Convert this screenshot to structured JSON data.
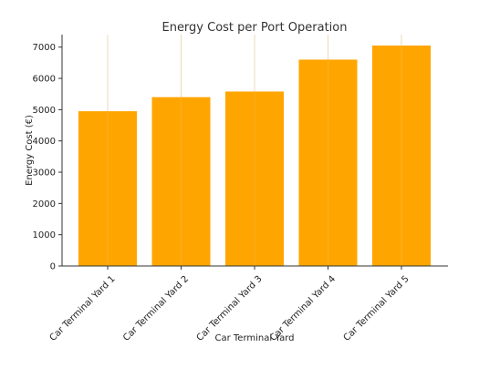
{
  "chart_data": {
    "type": "bar",
    "title": "Energy Cost per Port Operation",
    "xlabel": "Car Terminal Yard",
    "ylabel": "Energy Cost (€)",
    "categories": [
      "Car Terminal Yard 1",
      "Car Terminal Yard 2",
      "Car Terminal Yard 3",
      "Car Terminal Yard 4",
      "Car Terminal Yard 5"
    ],
    "values": [
      4950,
      5400,
      5580,
      6600,
      7050
    ],
    "ylim": [
      0,
      7400
    ],
    "yticks": [
      0,
      1000,
      2000,
      3000,
      4000,
      5000,
      6000,
      7000
    ],
    "bar_color": "#FFA500",
    "grid": "vertical gridlines"
  }
}
